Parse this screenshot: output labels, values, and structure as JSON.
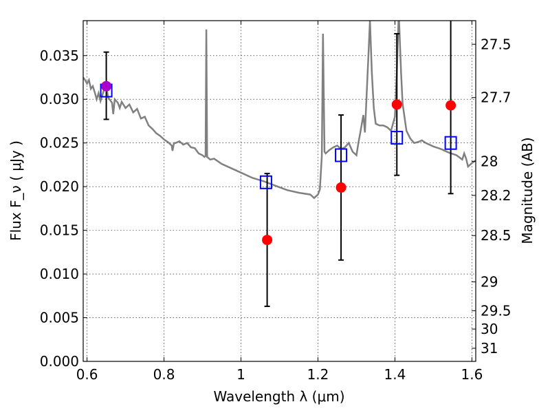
{
  "chart_data": {
    "type": "scatter",
    "xlabel": "Wavelength  λ (μm)",
    "ylabel": "Flux  F_ν  ( μJy )",
    "ylabel_right": "Magnitude (AB)",
    "xlim": [
      0.59,
      1.61
    ],
    "ylim": [
      0.0,
      0.039
    ],
    "grid": true,
    "x_ticks": [
      {
        "value": 0.6,
        "label": "0.6"
      },
      {
        "value": 0.8,
        "label": "0.8"
      },
      {
        "value": 1.0,
        "label": "1"
      },
      {
        "value": 1.2,
        "label": "1.2"
      },
      {
        "value": 1.4,
        "label": "1.4"
      },
      {
        "value": 1.6,
        "label": "1.6"
      }
    ],
    "y_ticks": [
      {
        "value": 0.0,
        "label": "0.000"
      },
      {
        "value": 0.005,
        "label": "0.005"
      },
      {
        "value": 0.01,
        "label": "0.010"
      },
      {
        "value": 0.015,
        "label": "0.015"
      },
      {
        "value": 0.02,
        "label": "0.020"
      },
      {
        "value": 0.025,
        "label": "0.025"
      },
      {
        "value": 0.03,
        "label": "0.030"
      },
      {
        "value": 0.035,
        "label": "0.035"
      }
    ],
    "right_ticks": [
      {
        "flux": 0.0363,
        "label": "27.5"
      },
      {
        "flux": 0.0302,
        "label": "27.7"
      },
      {
        "flux": 0.0229,
        "label": "28"
      },
      {
        "flux": 0.019,
        "label": "28.2"
      },
      {
        "flux": 0.0144,
        "label": "28.5"
      },
      {
        "flux": 0.0091,
        "label": "29"
      },
      {
        "flux": 0.0058,
        "label": "29.5"
      },
      {
        "flux": 0.0037,
        "label": "30"
      },
      {
        "flux": 0.0015,
        "label": "31"
      }
    ],
    "model_spectrum": {
      "color": "#808080",
      "points": [
        [
          0.59,
          0.0325
        ],
        [
          0.595,
          0.0322
        ],
        [
          0.6,
          0.0318
        ],
        [
          0.605,
          0.0322
        ],
        [
          0.61,
          0.0312
        ],
        [
          0.615,
          0.0315
        ],
        [
          0.62,
          0.0308
        ],
        [
          0.625,
          0.03
        ],
        [
          0.63,
          0.0307
        ],
        [
          0.635,
          0.0298
        ],
        [
          0.64,
          0.0305
        ],
        [
          0.645,
          0.0312
        ],
        [
          0.65,
          0.0315
        ],
        [
          0.655,
          0.0302
        ],
        [
          0.66,
          0.0299
        ],
        [
          0.665,
          0.0296
        ],
        [
          0.668,
          0.0283
        ],
        [
          0.672,
          0.03
        ],
        [
          0.68,
          0.0296
        ],
        [
          0.685,
          0.029
        ],
        [
          0.69,
          0.0297
        ],
        [
          0.7,
          0.029
        ],
        [
          0.71,
          0.0294
        ],
        [
          0.72,
          0.0285
        ],
        [
          0.73,
          0.0289
        ],
        [
          0.74,
          0.0278
        ],
        [
          0.75,
          0.028
        ],
        [
          0.76,
          0.027
        ],
        [
          0.77,
          0.0266
        ],
        [
          0.78,
          0.0261
        ],
        [
          0.79,
          0.0258
        ],
        [
          0.8,
          0.0254
        ],
        [
          0.81,
          0.0251
        ],
        [
          0.82,
          0.0247
        ],
        [
          0.822,
          0.0241
        ],
        [
          0.826,
          0.025
        ],
        [
          0.83,
          0.025
        ],
        [
          0.84,
          0.0252
        ],
        [
          0.85,
          0.0248
        ],
        [
          0.86,
          0.025
        ],
        [
          0.87,
          0.0245
        ],
        [
          0.88,
          0.0244
        ],
        [
          0.89,
          0.0238
        ],
        [
          0.9,
          0.0236
        ],
        [
          0.905,
          0.0234
        ],
        [
          0.908,
          0.0235
        ],
        [
          0.91,
          0.038
        ],
        [
          0.912,
          0.0234
        ],
        [
          0.92,
          0.0231
        ],
        [
          0.93,
          0.0232
        ],
        [
          0.95,
          0.0226
        ],
        [
          0.97,
          0.0222
        ],
        [
          1.0,
          0.0216
        ],
        [
          1.03,
          0.021
        ],
        [
          1.06,
          0.0206
        ],
        [
          1.09,
          0.0201
        ],
        [
          1.12,
          0.0196
        ],
        [
          1.15,
          0.0193
        ],
        [
          1.18,
          0.0191
        ],
        [
          1.19,
          0.0187
        ],
        [
          1.2,
          0.0191
        ],
        [
          1.205,
          0.0197
        ],
        [
          1.21,
          0.0235
        ],
        [
          1.213,
          0.0375
        ],
        [
          1.217,
          0.024
        ],
        [
          1.22,
          0.0238
        ],
        [
          1.23,
          0.0242
        ],
        [
          1.24,
          0.0245
        ],
        [
          1.25,
          0.0247
        ],
        [
          1.26,
          0.0243
        ],
        [
          1.27,
          0.0245
        ],
        [
          1.28,
          0.025
        ],
        [
          1.29,
          0.024
        ],
        [
          1.3,
          0.0236
        ],
        [
          1.305,
          0.025
        ],
        [
          1.31,
          0.0262
        ],
        [
          1.318,
          0.0282
        ],
        [
          1.322,
          0.0262
        ],
        [
          1.33,
          0.034
        ],
        [
          1.335,
          0.039
        ],
        [
          1.34,
          0.033
        ],
        [
          1.345,
          0.029
        ],
        [
          1.35,
          0.0272
        ],
        [
          1.36,
          0.027
        ],
        [
          1.37,
          0.027
        ],
        [
          1.38,
          0.0268
        ],
        [
          1.39,
          0.0264
        ],
        [
          1.4,
          0.028
        ],
        [
          1.405,
          0.033
        ],
        [
          1.41,
          0.04
        ],
        [
          1.416,
          0.033
        ],
        [
          1.42,
          0.0295
        ],
        [
          1.43,
          0.0264
        ],
        [
          1.44,
          0.0255
        ],
        [
          1.45,
          0.025
        ],
        [
          1.46,
          0.0251
        ],
        [
          1.47,
          0.0253
        ],
        [
          1.48,
          0.025
        ],
        [
          1.5,
          0.0246
        ],
        [
          1.52,
          0.0243
        ],
        [
          1.54,
          0.0239
        ],
        [
          1.56,
          0.0236
        ],
        [
          1.575,
          0.0231
        ],
        [
          1.58,
          0.0238
        ],
        [
          1.585,
          0.0232
        ],
        [
          1.59,
          0.0223
        ],
        [
          1.6,
          0.0227
        ],
        [
          1.61,
          0.023
        ]
      ]
    },
    "model_photometry": {
      "color": "#0000ff",
      "marker": "open-square",
      "points": [
        {
          "x": 0.65,
          "y": 0.031
        },
        {
          "x": 1.065,
          "y": 0.0205
        },
        {
          "x": 1.26,
          "y": 0.0236
        },
        {
          "x": 1.405,
          "y": 0.0256
        },
        {
          "x": 1.545,
          "y": 0.025
        }
      ]
    },
    "observed": {
      "color": "#ff0000",
      "marker": "filled-circle",
      "points": [
        {
          "x": 0.65,
          "y": 0.0315,
          "ylo": 0.0277,
          "yhi": 0.0354
        },
        {
          "x": 1.068,
          "y": 0.0139,
          "ylo": 0.0063,
          "yhi": 0.0215
        },
        {
          "x": 1.26,
          "y": 0.0199,
          "ylo": 0.0116,
          "yhi": 0.0282
        },
        {
          "x": 1.405,
          "y": 0.0294,
          "ylo": 0.0213,
          "yhi": 0.0375
        },
        {
          "x": 1.545,
          "y": 0.0293,
          "ylo": 0.0192,
          "yhi": 0.0393
        }
      ]
    },
    "highlight_marker": {
      "x": 0.65,
      "y": 0.0315,
      "color": "#aa00cc"
    }
  }
}
